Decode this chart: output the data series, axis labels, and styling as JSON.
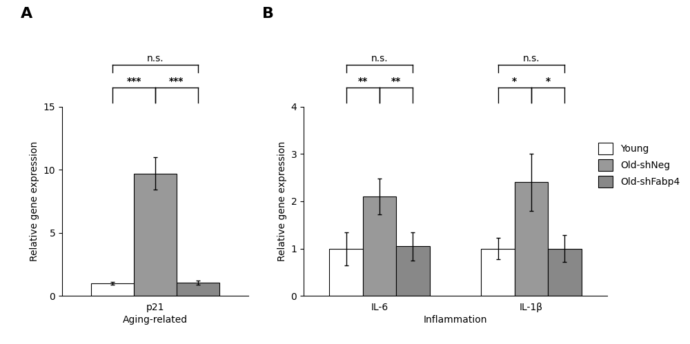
{
  "panel_A": {
    "title_label": "A",
    "categories": [
      "Young",
      "Old-shNeg",
      "Old-shFabp4"
    ],
    "values": [
      1.0,
      9.7,
      1.05
    ],
    "errors": [
      0.12,
      1.3,
      0.18
    ],
    "colors": [
      "#ffffff",
      "#999999",
      "#888888"
    ],
    "ylabel": "Relative gene expression",
    "gene_label": "p21",
    "xlabel": "Aging-related",
    "ylim": [
      0,
      15
    ],
    "yticks": [
      0,
      5,
      10,
      15
    ],
    "sig_inner_left": "***",
    "sig_inner_right": "***",
    "sig_outer": "n.s."
  },
  "panel_B": {
    "title_label": "B",
    "groups": [
      "IL-6",
      "IL-1β"
    ],
    "categories": [
      "Young",
      "Old-shNeg",
      "Old-shFabp4"
    ],
    "values": [
      [
        1.0,
        2.1,
        1.05
      ],
      [
        1.0,
        2.4,
        1.0
      ]
    ],
    "errors": [
      [
        0.35,
        0.38,
        0.3
      ],
      [
        0.22,
        0.6,
        0.28
      ]
    ],
    "colors": [
      "#ffffff",
      "#999999",
      "#888888"
    ],
    "ylabel": "Relative gene expression",
    "xlabel": "Inflammation",
    "ylim": [
      0,
      4.0
    ],
    "yticks": [
      0,
      1,
      2,
      3,
      4
    ],
    "sig_IL6_inner_left": "**",
    "sig_IL6_inner_right": "**",
    "sig_IL6_outer": "n.s.",
    "sig_IL1b_inner_left": "*",
    "sig_IL1b_inner_right": "*",
    "sig_IL1b_outer": "n.s."
  },
  "legend_labels": [
    "Young",
    "Old-shNeg",
    "Old-shFabp4"
  ],
  "legend_colors": [
    "#ffffff",
    "#999999",
    "#888888"
  ],
  "bar_width": 0.22,
  "bar_edge_color": "#000000",
  "fontsize": 10,
  "panel_label_fontsize": 16
}
